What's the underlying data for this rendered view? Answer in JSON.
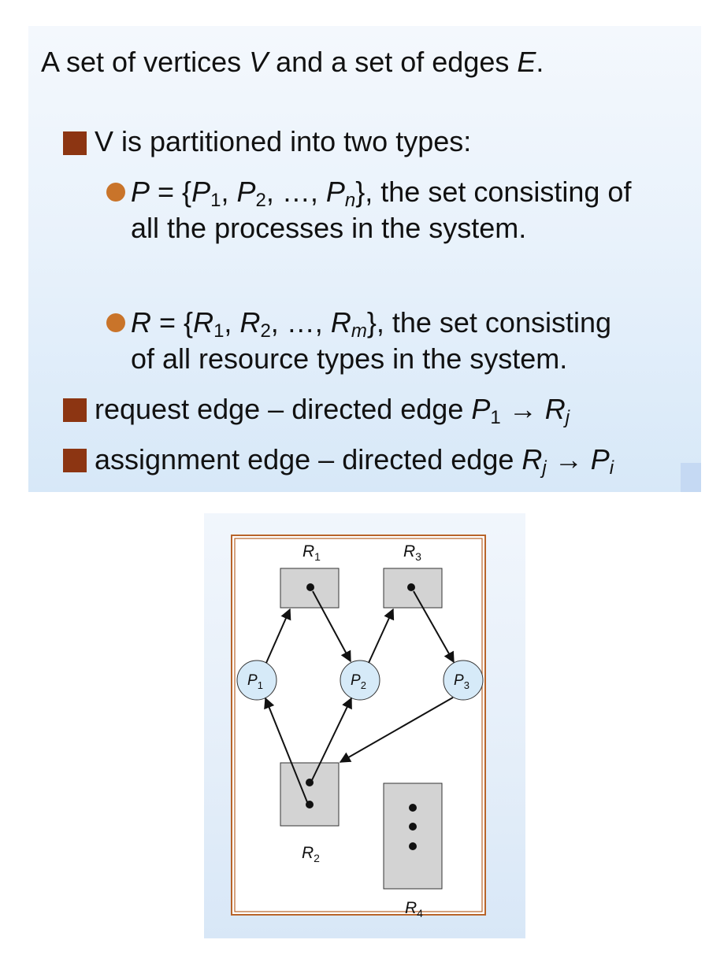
{
  "slide": {
    "intro": {
      "prefix": "A set of vertices ",
      "v": "V",
      "middle": " and a set of edges ",
      "e": "E",
      "suffix": "."
    },
    "partition": {
      "text": "V is partitioned into two types:"
    },
    "processes": {
      "set_name": "P",
      "equals": " = {",
      "p": "P",
      "sub1": "1",
      "sep1": ", ",
      "sub2": "2",
      "sep2": ", …, ",
      "subn": "n",
      "close": "}",
      "rest": ", the set consisting of",
      "line2": "all the processes in the system."
    },
    "resources": {
      "set_name": "R",
      "equals": " = {",
      "r": "R",
      "sub1": "1",
      "sep1": ", ",
      "sub2": "2",
      "sep2": ", …, ",
      "subm": "m",
      "close": "}",
      "rest": ", the set consisting",
      "line2": "of all resource types in the system."
    },
    "request_edge": {
      "text": "request edge – directed edge ",
      "from": "P",
      "from_sub": "1",
      "arrow": " → ",
      "to": "R",
      "to_sub": "j"
    },
    "assignment_edge": {
      "text": "assignment edge – directed edge ",
      "from": "R",
      "from_sub": "j",
      "arrow": " → ",
      "to": "P",
      "to_sub": "i"
    }
  },
  "graph": {
    "resources": [
      {
        "id": "R1",
        "name": "R",
        "sub": "1",
        "instances": 1
      },
      {
        "id": "R2",
        "name": "R",
        "sub": "2",
        "instances": 2
      },
      {
        "id": "R3",
        "name": "R",
        "sub": "3",
        "instances": 1
      },
      {
        "id": "R4",
        "name": "R",
        "sub": "4",
        "instances": 3
      }
    ],
    "processes": [
      {
        "id": "P1",
        "name": "P",
        "sub": "1"
      },
      {
        "id": "P2",
        "name": "P",
        "sub": "2"
      },
      {
        "id": "P3",
        "name": "P",
        "sub": "3"
      }
    ],
    "request_edges": [
      {
        "from": "P1",
        "to": "R1"
      },
      {
        "from": "P2",
        "to": "R3"
      },
      {
        "from": "P3",
        "to": "R2"
      }
    ],
    "assignment_edges": [
      {
        "from": "R1",
        "to": "P2"
      },
      {
        "from": "R2",
        "to": "P1"
      },
      {
        "from": "R2",
        "to": "P2"
      },
      {
        "from": "R3",
        "to": "P3"
      }
    ],
    "colors": {
      "process_fill": "#d6eaf8",
      "resource_fill": "#d3d3d3",
      "frame": "#b8642a"
    }
  }
}
